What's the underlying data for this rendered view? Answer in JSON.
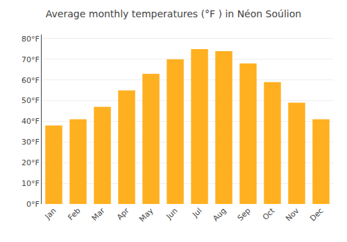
{
  "chart_data": {
    "type": "bar",
    "title": "Average monthly temperatures (°F ) in Néon Soúlion",
    "categories": [
      "Jan",
      "Feb",
      "Mar",
      "Apr",
      "May",
      "Jun",
      "Jul",
      "Aug",
      "Sep",
      "Oct",
      "Nov",
      "Dec"
    ],
    "values": [
      38,
      41,
      47,
      55,
      63,
      70,
      75,
      74,
      68,
      59,
      49,
      41
    ],
    "color": "#FFB020",
    "ylim": [
      0,
      82
    ],
    "yticks": [
      {
        "value": 0,
        "label": "0°F"
      },
      {
        "value": 10,
        "label": "10°F"
      },
      {
        "value": 20,
        "label": "20°F"
      },
      {
        "value": 30,
        "label": "30°F"
      },
      {
        "value": 40,
        "label": "40°F"
      },
      {
        "value": 50,
        "label": "50°F"
      },
      {
        "value": 60,
        "label": "60°F"
      },
      {
        "value": 70,
        "label": "70°F"
      },
      {
        "value": 80,
        "label": "80°F"
      }
    ],
    "grid": true
  }
}
